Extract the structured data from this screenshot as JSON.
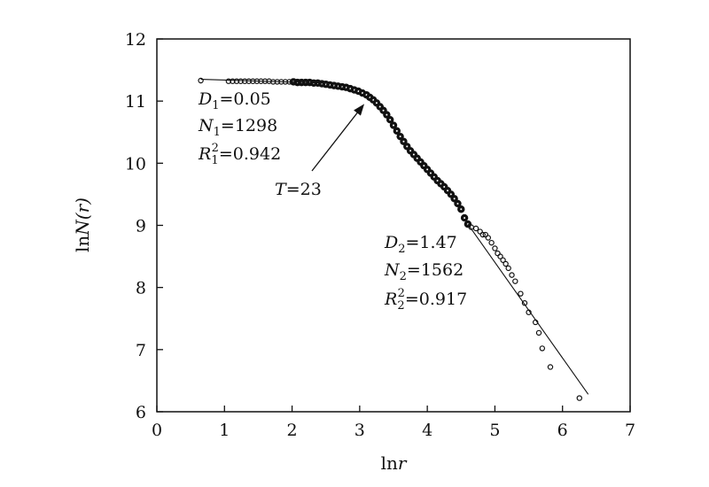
{
  "chart_data": {
    "type": "scatter",
    "xlabel": {
      "prefix": "ln",
      "var": "r"
    },
    "ylabel": {
      "prefix": "ln",
      "var": "N(r)"
    },
    "xlim": [
      0,
      7
    ],
    "ylim": [
      6,
      12
    ],
    "xticks": [
      "0",
      "1",
      "2",
      "3",
      "4",
      "5",
      "6",
      "7"
    ],
    "yticks": [
      "6",
      "7",
      "8",
      "9",
      "10",
      "11",
      "12"
    ],
    "grid": false,
    "legend": "none",
    "series": [
      {
        "marker": "open-circle",
        "points": [
          [
            0.65,
            11.33
          ],
          [
            1.06,
            11.32
          ],
          [
            1.12,
            11.32
          ],
          [
            1.18,
            11.32
          ],
          [
            1.24,
            11.32
          ],
          [
            1.3,
            11.32
          ],
          [
            1.36,
            11.32
          ],
          [
            1.42,
            11.32
          ],
          [
            1.48,
            11.32
          ],
          [
            1.54,
            11.32
          ],
          [
            1.6,
            11.32
          ],
          [
            1.66,
            11.32
          ],
          [
            1.72,
            11.31
          ],
          [
            1.78,
            11.31
          ],
          [
            1.84,
            11.31
          ],
          [
            1.9,
            11.31
          ],
          [
            1.96,
            11.31
          ],
          [
            2.02,
            11.31
          ],
          [
            2.08,
            11.3
          ],
          [
            2.14,
            11.3
          ],
          [
            2.2,
            11.3
          ],
          [
            2.26,
            11.3
          ],
          [
            2.32,
            11.29
          ],
          [
            2.38,
            11.29
          ],
          [
            2.44,
            11.28
          ],
          [
            2.5,
            11.27
          ],
          [
            2.56,
            11.26
          ],
          [
            2.62,
            11.25
          ],
          [
            2.68,
            11.24
          ],
          [
            2.74,
            11.23
          ],
          [
            2.8,
            11.22
          ],
          [
            2.86,
            11.2
          ],
          [
            2.92,
            11.18
          ],
          [
            2.98,
            11.16
          ],
          [
            3.04,
            11.13
          ],
          [
            3.1,
            11.1
          ],
          [
            3.15,
            11.06
          ],
          [
            3.2,
            11.02
          ],
          [
            3.25,
            10.97
          ],
          [
            3.3,
            10.91
          ],
          [
            3.35,
            10.85
          ],
          [
            3.4,
            10.78
          ],
          [
            3.45,
            10.7
          ],
          [
            3.5,
            10.61
          ],
          [
            3.55,
            10.52
          ],
          [
            3.6,
            10.43
          ],
          [
            3.65,
            10.35
          ],
          [
            3.7,
            10.27
          ],
          [
            3.75,
            10.2
          ],
          [
            3.8,
            10.14
          ],
          [
            3.85,
            10.08
          ],
          [
            3.9,
            10.02
          ],
          [
            3.95,
            9.96
          ],
          [
            4.0,
            9.9
          ],
          [
            4.05,
            9.84
          ],
          [
            4.1,
            9.78
          ],
          [
            4.15,
            9.72
          ],
          [
            4.2,
            9.67
          ],
          [
            4.25,
            9.62
          ],
          [
            4.3,
            9.56
          ],
          [
            4.35,
            9.5
          ],
          [
            4.4,
            9.43
          ],
          [
            4.45,
            9.35
          ],
          [
            4.5,
            9.26
          ],
          [
            4.55,
            9.12
          ],
          [
            4.6,
            9.02
          ],
          [
            4.65,
            8.97
          ],
          [
            4.72,
            8.95
          ],
          [
            4.78,
            8.9
          ],
          [
            4.82,
            8.85
          ],
          [
            4.86,
            8.85
          ],
          [
            4.9,
            8.8
          ],
          [
            4.95,
            8.72
          ],
          [
            5.0,
            8.63
          ],
          [
            5.04,
            8.55
          ],
          [
            5.08,
            8.5
          ],
          [
            5.12,
            8.44
          ],
          [
            5.16,
            8.38
          ],
          [
            5.2,
            8.31
          ],
          [
            5.25,
            8.2
          ],
          [
            5.3,
            8.1
          ],
          [
            5.38,
            7.9
          ],
          [
            5.44,
            7.75
          ],
          [
            5.5,
            7.6
          ],
          [
            5.6,
            7.44
          ],
          [
            5.65,
            7.27
          ],
          [
            5.7,
            7.02
          ],
          [
            5.82,
            6.72
          ],
          [
            6.25,
            6.22
          ]
        ]
      }
    ],
    "fit_lines": [
      {
        "from": [
          0.65,
          11.35
        ],
        "to": [
          2.5,
          11.29
        ]
      },
      {
        "from": [
          4.6,
          9.02
        ],
        "to": [
          6.38,
          6.28
        ]
      }
    ],
    "annotations": {
      "fit1": [
        {
          "var": "D",
          "sub": "1",
          "sup": "",
          "value": "=0.05"
        },
        {
          "var": "N",
          "sub": "1",
          "sup": "",
          "value": "=1298"
        },
        {
          "var": "R",
          "sub": "1",
          "sup": "2",
          "value": "=0.942"
        }
      ],
      "fit2": [
        {
          "var": "D",
          "sub": "2",
          "sup": "",
          "value": "=1.47"
        },
        {
          "var": "N",
          "sub": "2",
          "sup": "",
          "value": "=1562"
        },
        {
          "var": "R",
          "sub": "2",
          "sup": "2",
          "value": "=0.917"
        }
      ],
      "turning_point": {
        "var": "T",
        "value": "=23",
        "x": 3.1,
        "y": 11.0
      }
    }
  }
}
